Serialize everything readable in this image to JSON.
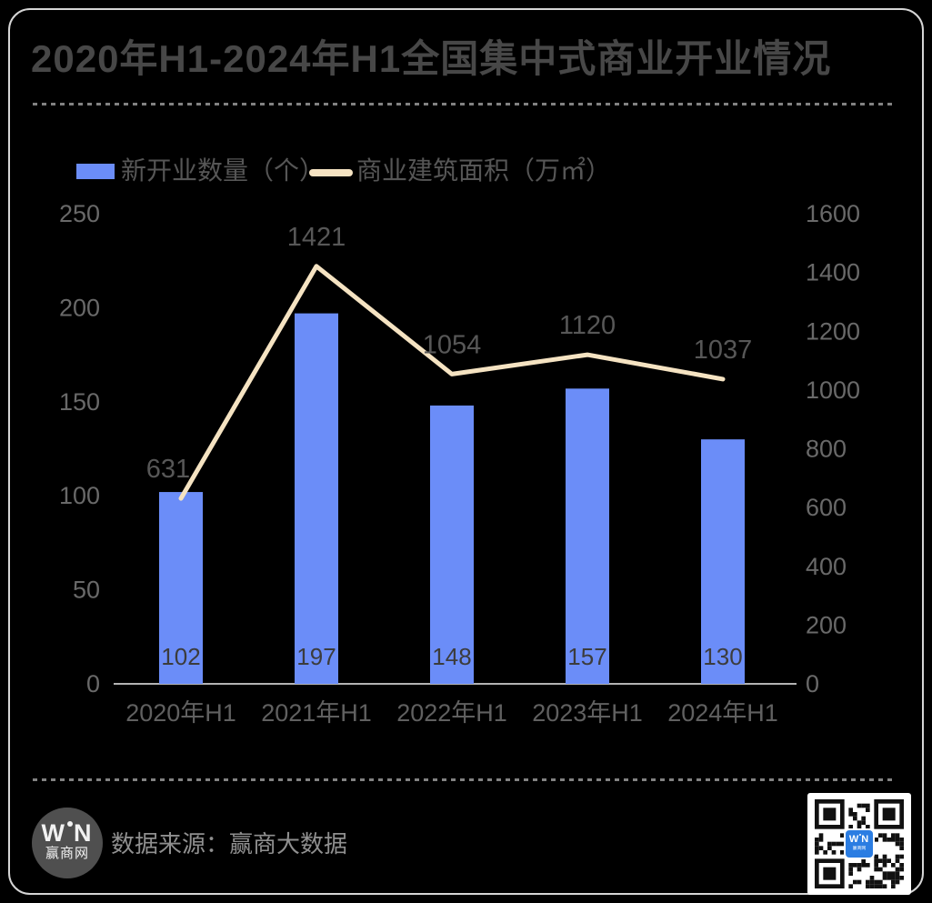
{
  "title": "2020年H1-2024年H1全国集中式商业开业情况",
  "legend": [
    {
      "label": "新开业数量（个）",
      "type": "bar",
      "color": "#6b8df8"
    },
    {
      "label": "商业建筑面积（万㎡）",
      "type": "line",
      "color": "#f5e3c2"
    }
  ],
  "chart_data": {
    "type": "bar+line combo",
    "categories": [
      "2020年H1",
      "2021年H1",
      "2022年H1",
      "2023年H1",
      "2024年H1"
    ],
    "series": [
      {
        "name": "新开业数量（个）",
        "type": "bar",
        "axis": "left",
        "values": [
          102,
          197,
          148,
          157,
          130
        ],
        "color": "#6b8df8",
        "label_color": "#3c3c3c"
      },
      {
        "name": "商业建筑面积（万㎡）",
        "type": "line",
        "axis": "right",
        "values": [
          631,
          1421,
          1054,
          1120,
          1037
        ],
        "color": "#f5e3c2",
        "label_color": "#575757",
        "label_dx": [
          -14,
          0,
          0,
          0,
          0
        ]
      }
    ],
    "left_axis": {
      "min": 0,
      "max": 250,
      "ticks": [
        0,
        50,
        100,
        150,
        200,
        250
      ]
    },
    "right_axis": {
      "min": 0,
      "max": 1600,
      "ticks": [
        0,
        200,
        400,
        600,
        800,
        1000,
        1200,
        1400,
        1600
      ]
    },
    "grid": false,
    "legend_position": "top-left",
    "title": "2020年H1-2024年H1全国集中式商业开业情况"
  },
  "footer": {
    "source_text": "数据来源：赢商大数据",
    "logo": {
      "brand": "赢商网",
      "monogram": "WN"
    },
    "qr": {
      "center_label": "WN",
      "center_sub": "赢商网"
    }
  },
  "colors": {
    "background": "#000000",
    "card_border": "#d5d5d5",
    "title_text": "#474747",
    "tick_text": "#696969",
    "xlabel_text": "#606060",
    "axis_line": "#b3b3b3",
    "bar_fill": "#6b8df8",
    "line_stroke": "#f5e3c2",
    "divider": "#828282",
    "source_text": "#8f8f8f",
    "qr_badge": "#2b7de2"
  }
}
